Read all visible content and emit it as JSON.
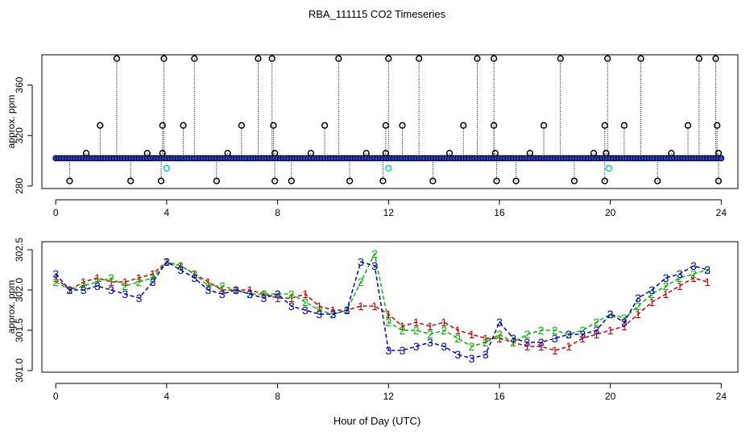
{
  "title": "RBA_111115  CO2 Timeseries",
  "xlabel": "Hour of Day (UTC)",
  "colors": {
    "axis": "#000000",
    "pt1": "#cc0000",
    "pt2": "#00bb00",
    "pt3": "#0000cc",
    "top_circle": "#000000",
    "top_fill": "#2244dd",
    "top_cyan": "#00cccc"
  },
  "chart_data": [
    {
      "type": "scatter",
      "panel": "top",
      "ylabel": "approx. ppm",
      "xlim": [
        -0.5,
        24.6
      ],
      "ylim": [
        278,
        384
      ],
      "xticks": [
        0,
        4,
        8,
        12,
        16,
        20,
        24
      ],
      "yticks": [
        280,
        320,
        360
      ],
      "baseline": 302,
      "spike_high": [
        2.2,
        3.9,
        5.0,
        7.3,
        7.8,
        10.2,
        12.0,
        13.1,
        15.2,
        15.8,
        18.2,
        19.9,
        21.1,
        23.2,
        23.8
      ],
      "spike_mid": [
        1.6,
        3.85,
        4.6,
        6.7,
        7.85,
        9.7,
        11.9,
        12.5,
        14.7,
        15.8,
        17.6,
        19.8,
        20.5,
        22.8,
        23.85
      ],
      "spike_low": [
        0.5,
        2.7,
        3.8,
        5.8,
        7.9,
        8.5,
        10.6,
        11.8,
        13.6,
        15.9,
        16.6,
        18.7,
        19.8,
        21.7,
        23.9
      ],
      "spike_small": [
        1.1,
        3.3,
        3.85,
        6.2,
        7.9,
        9.2,
        11.2,
        11.9,
        14.2,
        15.85,
        17.1,
        19.4,
        19.85,
        22.2,
        23.9
      ],
      "cyan_points": [
        [
          4.0,
          294
        ],
        [
          12.0,
          294
        ],
        [
          19.95,
          294
        ]
      ],
      "high_value": 381,
      "mid_value": 328,
      "low_value": 284,
      "small_value": 306
    },
    {
      "type": "line",
      "panel": "bottom",
      "ylabel": "approx. ppm",
      "xlim": [
        -0.5,
        24.6
      ],
      "ylim": [
        300.98,
        302.6
      ],
      "xticks": [
        0,
        4,
        8,
        12,
        16,
        20,
        24
      ],
      "yticks": [
        301.0,
        301.5,
        302.0,
        302.5
      ],
      "ytick_labels": [
        "301.0",
        "301.5",
        "302.0",
        "302.5"
      ],
      "series": [
        {
          "name": "1",
          "marker": "1",
          "x": [
            0,
            0.5,
            1,
            1.5,
            2,
            2.5,
            3,
            3.5,
            4,
            4.5,
            5,
            5.5,
            6,
            6.5,
            7,
            7.5,
            8,
            8.5,
            9,
            9.5,
            10,
            10.5,
            11,
            11.5,
            12,
            12.5,
            13,
            13.5,
            14,
            14.5,
            15,
            15.5,
            16,
            16.5,
            17,
            17.5,
            18,
            18.5,
            19,
            19.5,
            20,
            20.5,
            21,
            21.5,
            22,
            22.5,
            23,
            23.5
          ],
          "y": [
            302.15,
            302.0,
            302.1,
            302.15,
            302.1,
            302.1,
            302.15,
            302.2,
            302.35,
            302.3,
            302.2,
            302.1,
            302.0,
            302.0,
            302.0,
            301.95,
            301.9,
            301.9,
            301.95,
            301.8,
            301.75,
            301.75,
            301.8,
            301.8,
            301.7,
            301.55,
            301.6,
            301.55,
            301.6,
            301.5,
            301.45,
            301.4,
            301.4,
            301.35,
            301.3,
            301.3,
            301.25,
            301.3,
            301.4,
            301.45,
            301.5,
            301.55,
            301.7,
            301.85,
            301.95,
            302.05,
            302.15,
            302.1
          ]
        },
        {
          "name": "2",
          "marker": "2",
          "x": [
            0,
            0.5,
            1,
            1.5,
            2,
            2.5,
            3,
            3.5,
            4,
            4.5,
            5,
            5.5,
            6,
            6.5,
            7,
            7.5,
            8,
            8.5,
            9,
            9.5,
            10,
            10.5,
            11,
            11.5,
            12,
            12.5,
            13,
            13.5,
            14,
            14.5,
            15,
            15.5,
            16,
            16.5,
            17,
            17.5,
            18,
            18.5,
            19,
            19.5,
            20,
            20.5,
            21,
            21.5,
            22,
            22.5,
            23,
            23.5
          ],
          "y": [
            302.1,
            302.0,
            302.05,
            302.1,
            302.15,
            302.05,
            302.1,
            302.15,
            302.35,
            302.3,
            302.2,
            302.05,
            302.05,
            302.0,
            301.95,
            301.95,
            301.95,
            301.95,
            301.85,
            301.75,
            301.7,
            301.75,
            302.1,
            302.45,
            301.6,
            301.5,
            301.5,
            301.45,
            301.5,
            301.4,
            301.3,
            301.35,
            301.45,
            301.35,
            301.45,
            301.5,
            301.5,
            301.45,
            301.5,
            301.6,
            301.7,
            301.65,
            301.8,
            301.95,
            302.05,
            302.15,
            302.2,
            302.25
          ]
        },
        {
          "name": "3",
          "marker": "3",
          "x": [
            0,
            0.5,
            1,
            1.5,
            2,
            2.5,
            3,
            3.5,
            4,
            4.5,
            5,
            5.5,
            6,
            6.5,
            7,
            7.5,
            8,
            8.5,
            9,
            9.5,
            10,
            10.5,
            11,
            11.5,
            12,
            12.5,
            13,
            13.5,
            14,
            14.5,
            15,
            15.5,
            16,
            16.5,
            17,
            17.5,
            18,
            18.5,
            19,
            19.5,
            20,
            20.5,
            21,
            21.5,
            22,
            22.5,
            23,
            23.5
          ],
          "y": [
            302.2,
            302.0,
            302.0,
            302.05,
            302.0,
            301.95,
            301.9,
            302.1,
            302.35,
            302.25,
            302.15,
            302.0,
            301.95,
            302.0,
            301.95,
            301.9,
            301.95,
            301.8,
            301.75,
            301.7,
            301.7,
            301.75,
            302.35,
            302.3,
            301.25,
            301.25,
            301.3,
            301.35,
            301.3,
            301.2,
            301.15,
            301.2,
            301.6,
            301.4,
            301.35,
            301.35,
            301.4,
            301.45,
            301.45,
            301.5,
            301.7,
            301.6,
            301.9,
            302.0,
            302.15,
            302.2,
            302.3,
            302.25
          ]
        }
      ]
    }
  ]
}
